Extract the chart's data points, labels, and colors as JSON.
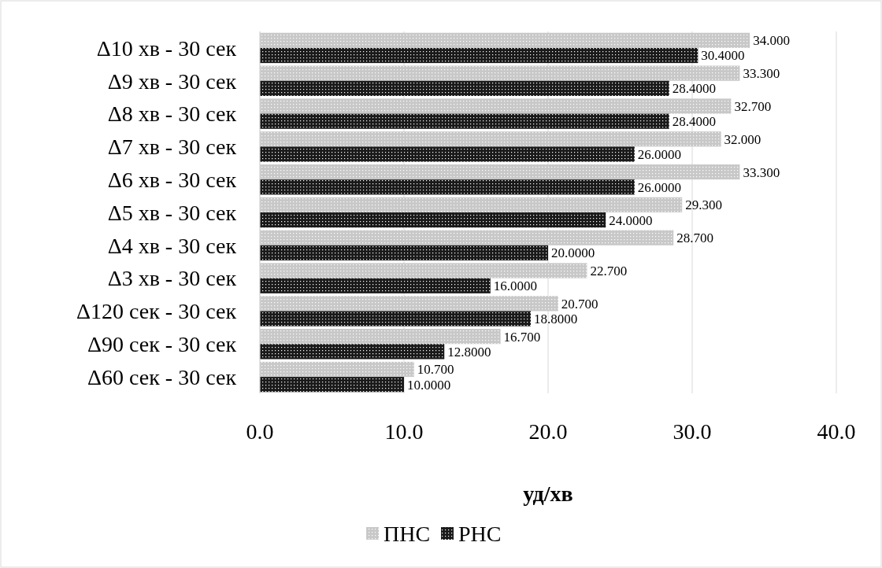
{
  "chart_data": {
    "type": "bar",
    "orientation": "horizontal",
    "xlabel": "уд/хв",
    "categories": [
      "Δ10 хв - 30 сек",
      "Δ9 хв - 30 сек",
      "Δ8 хв - 30 сек",
      "Δ7 хв - 30 сек",
      "Δ6 хв - 30 сек",
      "Δ5 хв - 30 сек",
      "Δ4 хв - 30 сек",
      "Δ3 хв - 30 сек",
      "Δ120 сек - 30 сек",
      "Δ90 сек - 30 сек",
      "Δ60 сек - 30 сек"
    ],
    "series": [
      {
        "name": "ПНС",
        "color": "#c8c8c8",
        "values": [
          34.0,
          33.3,
          32.7,
          32.0,
          33.3,
          29.3,
          28.7,
          22.7,
          20.7,
          16.7,
          10.7
        ],
        "value_labels": [
          "34.000",
          "33.300",
          "32.700",
          "32.000",
          "33.300",
          "29.300",
          "28.700",
          "22.700",
          "20.700",
          "16.700",
          "10.700"
        ]
      },
      {
        "name": "РНС",
        "color": "#1a1a1a",
        "values": [
          30.4,
          28.4,
          28.4,
          26.0,
          26.0,
          24.0,
          20.0,
          16.0,
          18.8,
          12.8,
          10.0
        ],
        "value_labels": [
          "30.4000",
          "28.4000",
          "28.4000",
          "26.0000",
          "26.0000",
          "24.0000",
          "20.0000",
          "16.0000",
          "18.8000",
          "12.8000",
          "10.0000"
        ]
      }
    ],
    "xlim": [
      0,
      40
    ],
    "xticks": [
      {
        "value": 0,
        "label": "0.0"
      },
      {
        "value": 10,
        "label": "10.0"
      },
      {
        "value": 20,
        "label": "20.0"
      },
      {
        "value": 30,
        "label": "30.0"
      },
      {
        "value": 40,
        "label": "40.0"
      }
    ],
    "grid": "x",
    "legend": "bottom"
  }
}
